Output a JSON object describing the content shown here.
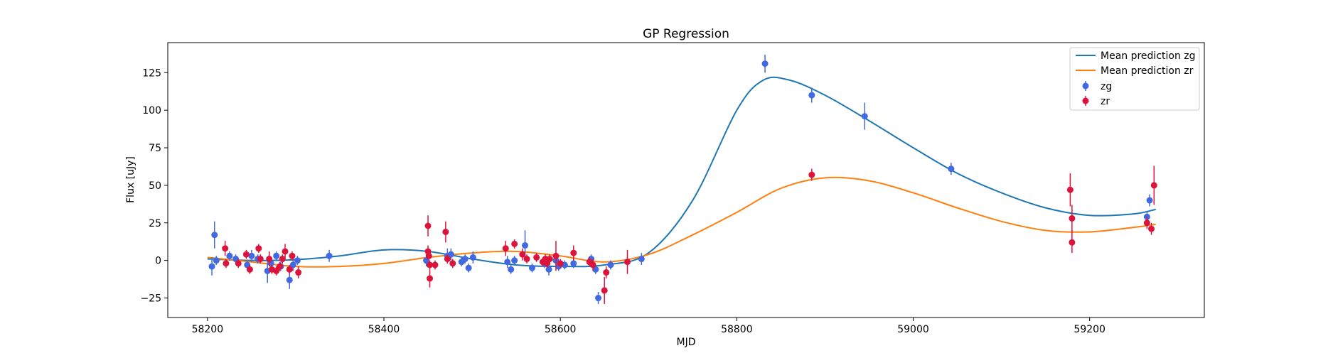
{
  "chart_data": {
    "type": "scatter",
    "title": "GP Regression",
    "xlabel": "MJD",
    "ylabel": "Flux [uJy]",
    "xlim": [
      58155,
      59330
    ],
    "ylim": [
      -38,
      145
    ],
    "xticks": [
      58200,
      58400,
      58600,
      58800,
      59000,
      59200
    ],
    "yticks": [
      -25,
      0,
      25,
      50,
      75,
      100,
      125
    ],
    "grid": false,
    "legend_position": "top-right",
    "legend": [
      "Mean prediction zg",
      "Mean prediction zr",
      "zg",
      "zr"
    ],
    "colors": {
      "zg_line": "#1f77b4",
      "zr_line": "#ff7f0e",
      "zg_points": "#4169e1",
      "zr_points": "#dc143c"
    },
    "lines": [
      {
        "name": "Mean prediction zg",
        "x": [
          58200,
          58250,
          58300,
          58350,
          58400,
          58450,
          58500,
          58550,
          58600,
          58650,
          58700,
          58750,
          58800,
          58830,
          58860,
          58900,
          58950,
          59000,
          59050,
          59100,
          59150,
          59200,
          59250,
          59275
        ],
        "y": [
          1,
          0,
          0.5,
          3,
          7,
          6,
          1,
          -3,
          -4,
          -3,
          5,
          40,
          100,
          120,
          120,
          110,
          93,
          75,
          58,
          45,
          35,
          30,
          31,
          34
        ]
      },
      {
        "name": "Mean prediction zr",
        "x": [
          58200,
          58250,
          58300,
          58350,
          58400,
          58450,
          58500,
          58550,
          58600,
          58650,
          58700,
          58750,
          58800,
          58850,
          58900,
          58950,
          59000,
          59050,
          59100,
          59150,
          59200,
          59250,
          59275
        ],
        "y": [
          2,
          -1,
          -4,
          -4,
          -2,
          2,
          5,
          6,
          3,
          -1,
          4,
          17,
          32,
          48,
          55,
          53,
          45,
          35,
          26,
          20,
          19,
          22,
          24
        ]
      }
    ],
    "series": [
      {
        "name": "zg",
        "points": [
          {
            "x": 58205,
            "y": -4,
            "err": 6
          },
          {
            "x": 58208,
            "y": 17,
            "err": 9
          },
          {
            "x": 58210,
            "y": 0,
            "err": 3
          },
          {
            "x": 58225,
            "y": 3,
            "err": 3
          },
          {
            "x": 58232,
            "y": 1,
            "err": 3
          },
          {
            "x": 58245,
            "y": -3,
            "err": 3
          },
          {
            "x": 58250,
            "y": 3,
            "err": 4
          },
          {
            "x": 58257,
            "y": 1,
            "err": 3
          },
          {
            "x": 58268,
            "y": -7,
            "err": 8
          },
          {
            "x": 58272,
            "y": -2,
            "err": 4
          },
          {
            "x": 58278,
            "y": 3,
            "err": 3
          },
          {
            "x": 58283,
            "y": -4,
            "err": 3
          },
          {
            "x": 58293,
            "y": -13,
            "err": 6
          },
          {
            "x": 58297,
            "y": -3,
            "err": 4
          },
          {
            "x": 58302,
            "y": 0,
            "err": 3
          },
          {
            "x": 58338,
            "y": 3,
            "err": 4
          },
          {
            "x": 58448,
            "y": 0,
            "err": 4
          },
          {
            "x": 58472,
            "y": 3,
            "err": 5
          },
          {
            "x": 58476,
            "y": 4,
            "err": 4
          },
          {
            "x": 58488,
            "y": -1,
            "err": 3
          },
          {
            "x": 58492,
            "y": 1,
            "err": 3
          },
          {
            "x": 58496,
            "y": -5,
            "err": 3
          },
          {
            "x": 58501,
            "y": 2,
            "err": 4
          },
          {
            "x": 58540,
            "y": -1,
            "err": 4
          },
          {
            "x": 58544,
            "y": -6,
            "err": 3
          },
          {
            "x": 58548,
            "y": 0,
            "err": 3
          },
          {
            "x": 58560,
            "y": 10,
            "err": 10
          },
          {
            "x": 58568,
            "y": -5,
            "err": 3
          },
          {
            "x": 58582,
            "y": -2,
            "err": 3
          },
          {
            "x": 58587,
            "y": -6,
            "err": 4
          },
          {
            "x": 58595,
            "y": 0,
            "err": 3
          },
          {
            "x": 58598,
            "y": -4,
            "err": 3
          },
          {
            "x": 58605,
            "y": -3,
            "err": 3
          },
          {
            "x": 58615,
            "y": -2,
            "err": 3
          },
          {
            "x": 58635,
            "y": 1,
            "err": 3
          },
          {
            "x": 58640,
            "y": -6,
            "err": 3
          },
          {
            "x": 58643,
            "y": -25,
            "err": 4
          },
          {
            "x": 58657,
            "y": -3,
            "err": 3
          },
          {
            "x": 58692,
            "y": 1,
            "err": 4
          },
          {
            "x": 58832,
            "y": 131,
            "err": 6
          },
          {
            "x": 58885,
            "y": 110,
            "err": 5
          },
          {
            "x": 58945,
            "y": 96,
            "err": 9
          },
          {
            "x": 59043,
            "y": 61,
            "err": 4
          },
          {
            "x": 59265,
            "y": 29,
            "err": 4
          },
          {
            "x": 59268,
            "y": 40,
            "err": 4
          }
        ]
      },
      {
        "name": "zr",
        "points": [
          {
            "x": 58220,
            "y": 8,
            "err": 5
          },
          {
            "x": 58221,
            "y": -2,
            "err": 3
          },
          {
            "x": 58235,
            "y": -2,
            "err": 3
          },
          {
            "x": 58244,
            "y": 4,
            "err": 3
          },
          {
            "x": 58248,
            "y": -6,
            "err": 3
          },
          {
            "x": 58258,
            "y": 8,
            "err": 3
          },
          {
            "x": 58260,
            "y": 1,
            "err": 3
          },
          {
            "x": 58270,
            "y": 1,
            "err": 5
          },
          {
            "x": 58273,
            "y": -6,
            "err": 3
          },
          {
            "x": 58278,
            "y": -7,
            "err": 3
          },
          {
            "x": 58282,
            "y": -4,
            "err": 3
          },
          {
            "x": 58285,
            "y": 1,
            "err": 3
          },
          {
            "x": 58288,
            "y": 6,
            "err": 5
          },
          {
            "x": 58293,
            "y": -6,
            "err": 3
          },
          {
            "x": 58296,
            "y": 3,
            "err": 3
          },
          {
            "x": 58303,
            "y": -8,
            "err": 4
          },
          {
            "x": 58450,
            "y": 23,
            "err": 7
          },
          {
            "x": 58450,
            "y": 6,
            "err": 4
          },
          {
            "x": 58451,
            "y": 3,
            "err": 3
          },
          {
            "x": 58452,
            "y": -3,
            "err": 3
          },
          {
            "x": 58452,
            "y": -12,
            "err": 6
          },
          {
            "x": 58458,
            "y": -3,
            "err": 3
          },
          {
            "x": 58470,
            "y": 19,
            "err": 7
          },
          {
            "x": 58472,
            "y": 1,
            "err": 3
          },
          {
            "x": 58478,
            "y": -2,
            "err": 3
          },
          {
            "x": 58538,
            "y": 8,
            "err": 5
          },
          {
            "x": 58548,
            "y": 11,
            "err": 3
          },
          {
            "x": 58557,
            "y": 4,
            "err": 4
          },
          {
            "x": 58562,
            "y": 1,
            "err": 3
          },
          {
            "x": 58573,
            "y": 2,
            "err": 3
          },
          {
            "x": 58580,
            "y": -1,
            "err": 3
          },
          {
            "x": 58583,
            "y": 1,
            "err": 3
          },
          {
            "x": 58585,
            "y": -2,
            "err": 3
          },
          {
            "x": 58588,
            "y": 1,
            "err": 3
          },
          {
            "x": 58595,
            "y": 3,
            "err": 10
          },
          {
            "x": 58600,
            "y": -2,
            "err": 3
          },
          {
            "x": 58615,
            "y": 5,
            "err": 5
          },
          {
            "x": 58633,
            "y": -1,
            "err": 3
          },
          {
            "x": 58637,
            "y": -3,
            "err": 4
          },
          {
            "x": 58650,
            "y": -20,
            "err": 9
          },
          {
            "x": 58652,
            "y": -8,
            "err": 4
          },
          {
            "x": 58676,
            "y": -1,
            "err": 8
          },
          {
            "x": 58885,
            "y": 57,
            "err": 4
          },
          {
            "x": 59178,
            "y": 47,
            "err": 11
          },
          {
            "x": 59180,
            "y": 28,
            "err": 9
          },
          {
            "x": 59180,
            "y": 12,
            "err": 7
          },
          {
            "x": 59265,
            "y": 25,
            "err": 4
          },
          {
            "x": 59270,
            "y": 21,
            "err": 4
          },
          {
            "x": 59273,
            "y": 50,
            "err": 13
          }
        ]
      }
    ]
  }
}
